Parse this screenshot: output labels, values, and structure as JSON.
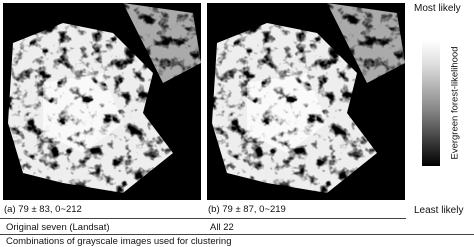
{
  "panels": [
    {
      "label": "(a) 79 ± 83, 0~212",
      "combination": "Original seven (Landsat)"
    },
    {
      "label": "(b) 79 ± 87, 0~219",
      "combination": "All 22"
    }
  ],
  "colorbar": {
    "top_label": "Most likely",
    "bottom_label": "Least likely",
    "axis_label": "Evergreen forest-likelihood"
  },
  "footer": "Combinations of grayscale images used for clustering"
}
